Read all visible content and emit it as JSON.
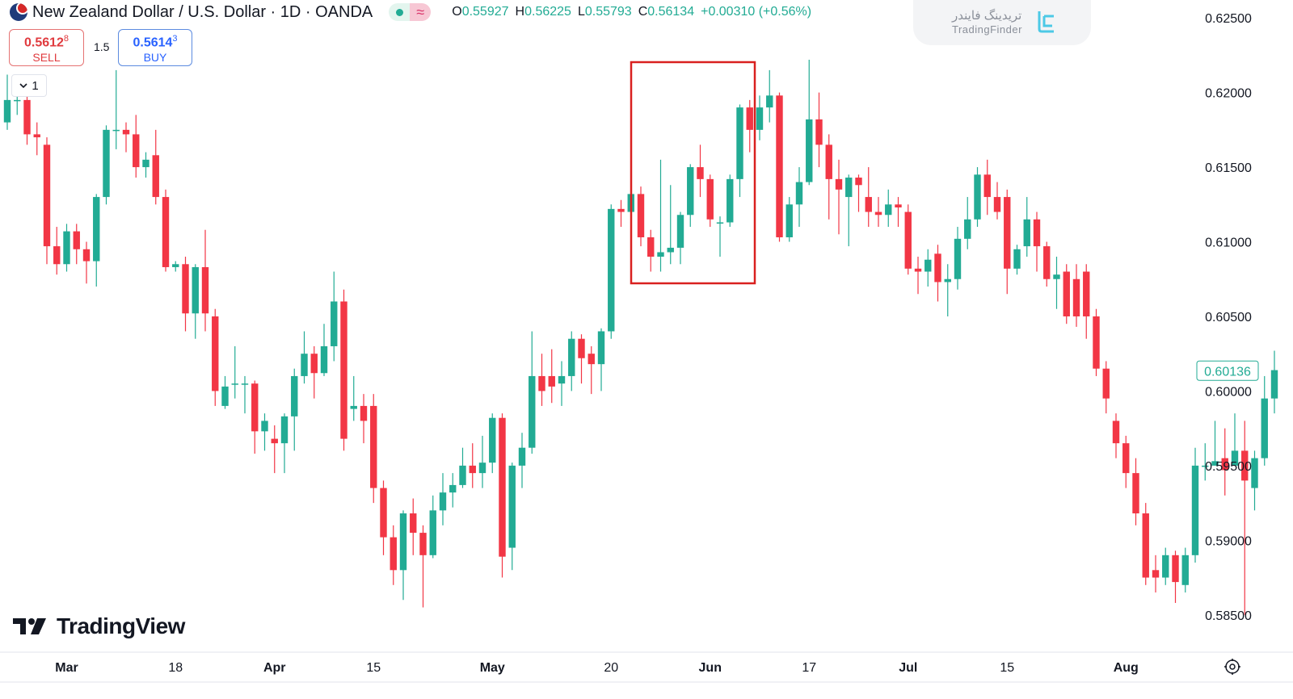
{
  "header": {
    "title": "New Zealand Dollar / U.S. Dollar · 1D · OANDA",
    "ohlc": [
      {
        "k": "O",
        "v": "0.55927"
      },
      {
        "k": "H",
        "v": "0.56225"
      },
      {
        "k": "L",
        "v": "0.55793"
      },
      {
        "k": "C",
        "v": "0.56134"
      },
      {
        "k": "",
        "v": "+0.00310 (+0.56%)"
      }
    ]
  },
  "trade": {
    "sell_price": "0.5612",
    "sell_sup": "8",
    "sell_label": "SELL",
    "spread": "1.5",
    "buy_price": "0.5614",
    "buy_sup": "3",
    "buy_label": "BUY"
  },
  "collapse_count": "1",
  "watermark": {
    "fa": "تریدینگ فایندر",
    "en": "TradingFinder"
  },
  "brand": "TradingView",
  "colors": {
    "up": "#22ab94",
    "down": "#f23645",
    "highlight_box": "#d9201f",
    "price_tag": "#22ab94"
  },
  "chart_data": {
    "type": "candlestick",
    "symbol": "NZDUSD",
    "timeframe": "1D",
    "ylim": [
      0.5825,
      0.6262
    ],
    "y_ticks": [
      "0.62500",
      "0.62000",
      "0.61500",
      "0.61000",
      "0.60500",
      "0.60000",
      "0.59500",
      "0.59000",
      "0.58500"
    ],
    "x_ticks": [
      "Mar",
      "18",
      "Apr",
      "15",
      "May",
      "20",
      "Jun",
      "17",
      "Jul",
      "15",
      "Aug"
    ],
    "last_price": "0.60136",
    "candles": [
      [
        0.618,
        0.6195,
        0.6175,
        0.6212
      ],
      [
        0.6195,
        0.6195,
        0.6185,
        0.62
      ],
      [
        0.6195,
        0.6172,
        0.6165,
        0.6202
      ],
      [
        0.6172,
        0.617,
        0.6158,
        0.618
      ],
      [
        0.6165,
        0.6097,
        0.6085,
        0.617
      ],
      [
        0.6097,
        0.6085,
        0.6078,
        0.611
      ],
      [
        0.6085,
        0.6107,
        0.608,
        0.6112
      ],
      [
        0.6107,
        0.6095,
        0.6085,
        0.6112
      ],
      [
        0.6095,
        0.6087,
        0.6072,
        0.61
      ],
      [
        0.6087,
        0.613,
        0.607,
        0.6132
      ],
      [
        0.613,
        0.6175,
        0.6125,
        0.6178
      ],
      [
        0.6175,
        0.6175,
        0.6162,
        0.6215
      ],
      [
        0.6175,
        0.6172,
        0.616,
        0.618
      ],
      [
        0.6172,
        0.615,
        0.6143,
        0.6185
      ],
      [
        0.615,
        0.6155,
        0.6143,
        0.616
      ],
      [
        0.6158,
        0.613,
        0.6125,
        0.6175
      ],
      [
        0.613,
        0.6083,
        0.608,
        0.6135
      ],
      [
        0.6083,
        0.6085,
        0.608,
        0.6087
      ],
      [
        0.6085,
        0.6052,
        0.604,
        0.609
      ],
      [
        0.6052,
        0.6083,
        0.6035,
        0.6085
      ],
      [
        0.6083,
        0.6052,
        0.604,
        0.6108
      ],
      [
        0.605,
        0.6,
        0.599,
        0.6055
      ],
      [
        0.599,
        0.6003,
        0.5988,
        0.601
      ],
      [
        0.6005,
        0.6005,
        0.5995,
        0.603
      ],
      [
        0.6005,
        0.6005,
        0.5985,
        0.601
      ],
      [
        0.6005,
        0.5973,
        0.5958,
        0.6007
      ],
      [
        0.5973,
        0.598,
        0.596,
        0.5985
      ],
      [
        0.5968,
        0.5965,
        0.5945,
        0.5977
      ],
      [
        0.5965,
        0.5983,
        0.5945,
        0.5985
      ],
      [
        0.5983,
        0.601,
        0.596,
        0.6015
      ],
      [
        0.601,
        0.6025,
        0.6005,
        0.604
      ],
      [
        0.6025,
        0.6012,
        0.5995,
        0.603
      ],
      [
        0.6012,
        0.603,
        0.601,
        0.6045
      ],
      [
        0.603,
        0.606,
        0.602,
        0.608
      ],
      [
        0.606,
        0.5968,
        0.596,
        0.6068
      ],
      [
        0.5988,
        0.599,
        0.598,
        0.601
      ],
      [
        0.599,
        0.598,
        0.5965,
        0.5998
      ],
      [
        0.599,
        0.5935,
        0.5925,
        0.5998
      ],
      [
        0.5935,
        0.5902,
        0.589,
        0.594
      ],
      [
        0.5902,
        0.588,
        0.587,
        0.591
      ],
      [
        0.588,
        0.5918,
        0.586,
        0.592
      ],
      [
        0.5918,
        0.5905,
        0.589,
        0.5928
      ],
      [
        0.5905,
        0.589,
        0.5855,
        0.591
      ],
      [
        0.589,
        0.592,
        0.5888,
        0.593
      ],
      [
        0.592,
        0.5932,
        0.591,
        0.5945
      ],
      [
        0.5932,
        0.5937,
        0.5922,
        0.5945
      ],
      [
        0.5937,
        0.595,
        0.5935,
        0.5962
      ],
      [
        0.595,
        0.5945,
        0.5935,
        0.5965
      ],
      [
        0.5945,
        0.5952,
        0.5935,
        0.597
      ],
      [
        0.5952,
        0.5982,
        0.5945,
        0.5985
      ],
      [
        0.5982,
        0.5889,
        0.5875,
        0.5985
      ],
      [
        0.5895,
        0.595,
        0.588,
        0.5952
      ],
      [
        0.595,
        0.5962,
        0.5935,
        0.5972
      ],
      [
        0.5962,
        0.601,
        0.5958,
        0.604
      ],
      [
        0.601,
        0.6,
        0.599,
        0.6025
      ],
      [
        0.601,
        0.6003,
        0.5992,
        0.6028
      ],
      [
        0.6005,
        0.601,
        0.599,
        0.602
      ],
      [
        0.601,
        0.6035,
        0.6,
        0.604
      ],
      [
        0.6035,
        0.6022,
        0.6005,
        0.6038
      ],
      [
        0.6025,
        0.6018,
        0.5998,
        0.603
      ],
      [
        0.6018,
        0.604,
        0.6,
        0.6042
      ],
      [
        0.604,
        0.6122,
        0.6035,
        0.6125
      ],
      [
        0.6122,
        0.612,
        0.611,
        0.6128
      ],
      [
        0.612,
        0.6132,
        0.611,
        0.614
      ],
      [
        0.6132,
        0.6103,
        0.6097,
        0.6137
      ],
      [
        0.6103,
        0.609,
        0.608,
        0.6108
      ],
      [
        0.609,
        0.6093,
        0.608,
        0.6155
      ],
      [
        0.6093,
        0.6096,
        0.6085,
        0.6138
      ],
      [
        0.6096,
        0.6118,
        0.6085,
        0.612
      ],
      [
        0.6118,
        0.615,
        0.611,
        0.6152
      ],
      [
        0.615,
        0.6142,
        0.613,
        0.6165
      ],
      [
        0.6142,
        0.6115,
        0.611,
        0.6145
      ],
      [
        0.6113,
        0.6113,
        0.609,
        0.6117
      ],
      [
        0.6113,
        0.6142,
        0.611,
        0.6145
      ],
      [
        0.6142,
        0.619,
        0.613,
        0.6192
      ],
      [
        0.619,
        0.6175,
        0.616,
        0.6195
      ],
      [
        0.6175,
        0.619,
        0.6168,
        0.6198
      ],
      [
        0.619,
        0.6198,
        0.618,
        0.6215
      ],
      [
        0.6198,
        0.6103,
        0.61,
        0.62
      ],
      [
        0.6103,
        0.6125,
        0.61,
        0.613
      ],
      [
        0.6125,
        0.614,
        0.611,
        0.615
      ],
      [
        0.614,
        0.6182,
        0.6138,
        0.6222
      ],
      [
        0.6182,
        0.6165,
        0.615,
        0.62
      ],
      [
        0.6165,
        0.6142,
        0.6115,
        0.6172
      ],
      [
        0.6142,
        0.6135,
        0.6105,
        0.6155
      ],
      [
        0.613,
        0.6143,
        0.6097,
        0.6145
      ],
      [
        0.6143,
        0.6138,
        0.612,
        0.6145
      ],
      [
        0.613,
        0.612,
        0.611,
        0.615
      ],
      [
        0.612,
        0.6118,
        0.611,
        0.613
      ],
      [
        0.6118,
        0.6125,
        0.611,
        0.6135
      ],
      [
        0.6125,
        0.6123,
        0.611,
        0.613
      ],
      [
        0.612,
        0.6082,
        0.6078,
        0.6125
      ],
      [
        0.6082,
        0.608,
        0.6065,
        0.609
      ],
      [
        0.608,
        0.6088,
        0.607,
        0.6095
      ],
      [
        0.6092,
        0.6073,
        0.606,
        0.6098
      ],
      [
        0.6073,
        0.6075,
        0.605,
        0.6085
      ],
      [
        0.6075,
        0.6102,
        0.6068,
        0.611
      ],
      [
        0.6102,
        0.6115,
        0.6095,
        0.613
      ],
      [
        0.6115,
        0.6145,
        0.611,
        0.615
      ],
      [
        0.6145,
        0.613,
        0.6118,
        0.6155
      ],
      [
        0.613,
        0.612,
        0.6115,
        0.614
      ],
      [
        0.613,
        0.6082,
        0.6065,
        0.6135
      ],
      [
        0.6082,
        0.6095,
        0.6078,
        0.6098
      ],
      [
        0.6097,
        0.6115,
        0.609,
        0.613
      ],
      [
        0.6115,
        0.6097,
        0.608,
        0.612
      ],
      [
        0.6097,
        0.6075,
        0.607,
        0.61
      ],
      [
        0.6075,
        0.6078,
        0.6055,
        0.609
      ],
      [
        0.608,
        0.605,
        0.6045,
        0.6085
      ],
      [
        0.6075,
        0.605,
        0.6043,
        0.6085
      ],
      [
        0.608,
        0.605,
        0.6035,
        0.6085
      ],
      [
        0.605,
        0.6015,
        0.601,
        0.6055
      ],
      [
        0.6015,
        0.5995,
        0.5985,
        0.602
      ],
      [
        0.598,
        0.5965,
        0.5955,
        0.5985
      ],
      [
        0.5965,
        0.5945,
        0.5935,
        0.597
      ],
      [
        0.5945,
        0.5918,
        0.591,
        0.5955
      ],
      [
        0.5918,
        0.5875,
        0.587,
        0.5925
      ],
      [
        0.588,
        0.5875,
        0.5865,
        0.589
      ],
      [
        0.5875,
        0.589,
        0.587,
        0.5895
      ],
      [
        0.589,
        0.5872,
        0.5858,
        0.5893
      ],
      [
        0.587,
        0.589,
        0.5865,
        0.5895
      ],
      [
        0.589,
        0.595,
        0.5885,
        0.5962
      ],
      [
        0.595,
        0.595,
        0.594,
        0.5965
      ],
      [
        0.595,
        0.5953,
        0.595,
        0.598
      ],
      [
        0.5955,
        0.5947,
        0.593,
        0.5975
      ],
      [
        0.595,
        0.596,
        0.595,
        0.5985
      ],
      [
        0.596,
        0.594,
        0.585,
        0.598
      ],
      [
        0.5935,
        0.5955,
        0.592,
        0.596
      ],
      [
        0.5955,
        0.5995,
        0.595,
        0.601
      ],
      [
        0.5995,
        0.6014,
        0.5985,
        0.6027
      ]
    ]
  }
}
